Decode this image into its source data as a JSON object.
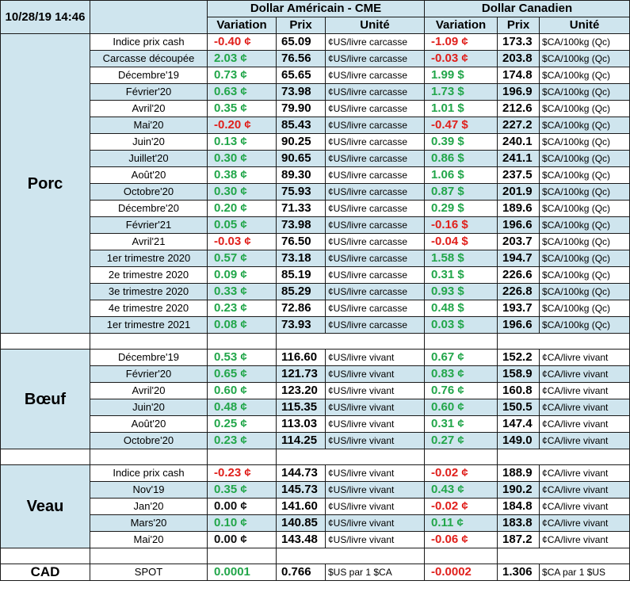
{
  "header": {
    "date": "10/28/19 14:46",
    "us_title": "Dollar Américain - CME",
    "ca_title": "Dollar Canadien",
    "col_variation": "Variation",
    "col_prix": "Prix",
    "col_unite": "Unité"
  },
  "colors": {
    "positive": "#22a64a",
    "negative": "#e0201c",
    "band": "#cfe5ee"
  },
  "sections": [
    {
      "name": "Porc",
      "rows": [
        {
          "label": "Indice prix cash",
          "us_var": "-0.40 ¢",
          "us_sign": "neg",
          "us_price": "65.09",
          "us_unit": "¢US/livre carcasse",
          "ca_var": "-1.09 ¢",
          "ca_sign": "neg",
          "ca_price": "173.3",
          "ca_unit": "$CA/100kg (Qc)"
        },
        {
          "label": "Carcasse découpée",
          "us_var": "2.03 ¢",
          "us_sign": "pos",
          "us_price": "76.56",
          "us_unit": "¢US/livre carcasse",
          "ca_var": "-0.03 ¢",
          "ca_sign": "neg",
          "ca_price": "203.8",
          "ca_unit": "$CA/100kg (Qc)"
        },
        {
          "label": "Décembre'19",
          "us_var": "0.73 ¢",
          "us_sign": "pos",
          "us_price": "65.65",
          "us_unit": "¢US/livre carcasse",
          "ca_var": "1.99 $",
          "ca_sign": "pos",
          "ca_price": "174.8",
          "ca_unit": "$CA/100kg (Qc)"
        },
        {
          "label": "Février'20",
          "us_var": "0.63 ¢",
          "us_sign": "pos",
          "us_price": "73.98",
          "us_unit": "¢US/livre carcasse",
          "ca_var": "1.73 $",
          "ca_sign": "pos",
          "ca_price": "196.9",
          "ca_unit": "$CA/100kg (Qc)"
        },
        {
          "label": "Avril'20",
          "us_var": "0.35 ¢",
          "us_sign": "pos",
          "us_price": "79.90",
          "us_unit": "¢US/livre carcasse",
          "ca_var": "1.01 $",
          "ca_sign": "pos",
          "ca_price": "212.6",
          "ca_unit": "$CA/100kg (Qc)"
        },
        {
          "label": "Mai'20",
          "us_var": "-0.20 ¢",
          "us_sign": "neg",
          "us_price": "85.43",
          "us_unit": "¢US/livre carcasse",
          "ca_var": "-0.47 $",
          "ca_sign": "neg",
          "ca_price": "227.2",
          "ca_unit": "$CA/100kg (Qc)"
        },
        {
          "label": "Juin'20",
          "us_var": "0.13 ¢",
          "us_sign": "pos",
          "us_price": "90.25",
          "us_unit": "¢US/livre carcasse",
          "ca_var": "0.39 $",
          "ca_sign": "pos",
          "ca_price": "240.1",
          "ca_unit": "$CA/100kg (Qc)"
        },
        {
          "label": "Juillet'20",
          "us_var": "0.30 ¢",
          "us_sign": "pos",
          "us_price": "90.65",
          "us_unit": "¢US/livre carcasse",
          "ca_var": "0.86 $",
          "ca_sign": "pos",
          "ca_price": "241.1",
          "ca_unit": "$CA/100kg (Qc)"
        },
        {
          "label": "Août'20",
          "us_var": "0.38 ¢",
          "us_sign": "pos",
          "us_price": "89.30",
          "us_unit": "¢US/livre carcasse",
          "ca_var": "1.06 $",
          "ca_sign": "pos",
          "ca_price": "237.5",
          "ca_unit": "$CA/100kg (Qc)"
        },
        {
          "label": "Octobre'20",
          "us_var": "0.30 ¢",
          "us_sign": "pos",
          "us_price": "75.93",
          "us_unit": "¢US/livre carcasse",
          "ca_var": "0.87 $",
          "ca_sign": "pos",
          "ca_price": "201.9",
          "ca_unit": "$CA/100kg (Qc)"
        },
        {
          "label": "Décembre'20",
          "us_var": "0.20 ¢",
          "us_sign": "pos",
          "us_price": "71.33",
          "us_unit": "¢US/livre carcasse",
          "ca_var": "0.29 $",
          "ca_sign": "pos",
          "ca_price": "189.6",
          "ca_unit": "$CA/100kg (Qc)"
        },
        {
          "label": "Février'21",
          "us_var": "0.05 ¢",
          "us_sign": "pos",
          "us_price": "73.98",
          "us_unit": "¢US/livre carcasse",
          "ca_var": "-0.16 $",
          "ca_sign": "neg",
          "ca_price": "196.6",
          "ca_unit": "$CA/100kg (Qc)"
        },
        {
          "label": "Avril'21",
          "us_var": "-0.03 ¢",
          "us_sign": "neg",
          "us_price": "76.50",
          "us_unit": "¢US/livre carcasse",
          "ca_var": "-0.04 $",
          "ca_sign": "neg",
          "ca_price": "203.7",
          "ca_unit": "$CA/100kg (Qc)"
        },
        {
          "label": "1er trimestre 2020",
          "us_var": "0.57 ¢",
          "us_sign": "pos",
          "us_price": "73.18",
          "us_unit": "¢US/livre carcasse",
          "ca_var": "1.58 $",
          "ca_sign": "pos",
          "ca_price": "194.7",
          "ca_unit": "$CA/100kg (Qc)"
        },
        {
          "label": "2e trimestre 2020",
          "us_var": "0.09 ¢",
          "us_sign": "pos",
          "us_price": "85.19",
          "us_unit": "¢US/livre carcasse",
          "ca_var": "0.31 $",
          "ca_sign": "pos",
          "ca_price": "226.6",
          "ca_unit": "$CA/100kg (Qc)"
        },
        {
          "label": "3e trimestre 2020",
          "us_var": "0.33 ¢",
          "us_sign": "pos",
          "us_price": "85.29",
          "us_unit": "¢US/livre carcasse",
          "ca_var": "0.93 $",
          "ca_sign": "pos",
          "ca_price": "226.8",
          "ca_unit": "$CA/100kg (Qc)"
        },
        {
          "label": "4e trimestre 2020",
          "us_var": "0.23 ¢",
          "us_sign": "pos",
          "us_price": "72.86",
          "us_unit": "¢US/livre carcasse",
          "ca_var": "0.48 $",
          "ca_sign": "pos",
          "ca_price": "193.7",
          "ca_unit": "$CA/100kg (Qc)"
        },
        {
          "label": "1er trimestre 2021",
          "us_var": "0.08 ¢",
          "us_sign": "pos",
          "us_price": "73.93",
          "us_unit": "¢US/livre carcasse",
          "ca_var": "0.03 $",
          "ca_sign": "pos",
          "ca_price": "196.6",
          "ca_unit": "$CA/100kg (Qc)"
        }
      ]
    },
    {
      "name": "Bœuf",
      "rows": [
        {
          "label": "Décembre'19",
          "us_var": "0.53 ¢",
          "us_sign": "pos",
          "us_price": "116.60",
          "us_unit": "¢US/livre vivant",
          "ca_var": "0.67 ¢",
          "ca_sign": "pos",
          "ca_price": "152.2",
          "ca_unit": "¢CA/livre vivant"
        },
        {
          "label": "Février'20",
          "us_var": "0.65 ¢",
          "us_sign": "pos",
          "us_price": "121.73",
          "us_unit": "¢US/livre vivant",
          "ca_var": "0.83 ¢",
          "ca_sign": "pos",
          "ca_price": "158.9",
          "ca_unit": "¢CA/livre vivant"
        },
        {
          "label": "Avril'20",
          "us_var": "0.60 ¢",
          "us_sign": "pos",
          "us_price": "123.20",
          "us_unit": "¢US/livre vivant",
          "ca_var": "0.76 ¢",
          "ca_sign": "pos",
          "ca_price": "160.8",
          "ca_unit": "¢CA/livre vivant"
        },
        {
          "label": "Juin'20",
          "us_var": "0.48 ¢",
          "us_sign": "pos",
          "us_price": "115.35",
          "us_unit": "¢US/livre vivant",
          "ca_var": "0.60 ¢",
          "ca_sign": "pos",
          "ca_price": "150.5",
          "ca_unit": "¢CA/livre vivant"
        },
        {
          "label": "Août'20",
          "us_var": "0.25 ¢",
          "us_sign": "pos",
          "us_price": "113.03",
          "us_unit": "¢US/livre vivant",
          "ca_var": "0.31 ¢",
          "ca_sign": "pos",
          "ca_price": "147.4",
          "ca_unit": "¢CA/livre vivant"
        },
        {
          "label": "Octobre'20",
          "us_var": "0.23 ¢",
          "us_sign": "pos",
          "us_price": "114.25",
          "us_unit": "¢US/livre vivant",
          "ca_var": "0.27 ¢",
          "ca_sign": "pos",
          "ca_price": "149.0",
          "ca_unit": "¢CA/livre vivant"
        }
      ]
    },
    {
      "name": "Veau",
      "rows": [
        {
          "label": "Indice prix cash",
          "us_var": "-0.23 ¢",
          "us_sign": "neg",
          "us_price": "144.73",
          "us_unit": "¢US/livre vivant",
          "ca_var": "-0.02 ¢",
          "ca_sign": "neg",
          "ca_price": "188.9",
          "ca_unit": "¢CA/livre vivant"
        },
        {
          "label": "Nov'19",
          "us_var": "0.35 ¢",
          "us_sign": "pos",
          "us_price": "145.73",
          "us_unit": "¢US/livre vivant",
          "ca_var": "0.43 ¢",
          "ca_sign": "pos",
          "ca_price": "190.2",
          "ca_unit": "¢CA/livre vivant"
        },
        {
          "label": "Jan'20",
          "us_var": "0.00 ¢",
          "us_sign": "zero",
          "us_price": "141.60",
          "us_unit": "¢US/livre vivant",
          "ca_var": "-0.02 ¢",
          "ca_sign": "neg",
          "ca_price": "184.8",
          "ca_unit": "¢CA/livre vivant"
        },
        {
          "label": "Mars'20",
          "us_var": "0.10 ¢",
          "us_sign": "pos",
          "us_price": "140.85",
          "us_unit": "¢US/livre vivant",
          "ca_var": "0.11 ¢",
          "ca_sign": "pos",
          "ca_price": "183.8",
          "ca_unit": "¢CA/livre vivant"
        },
        {
          "label": "Mai'20",
          "us_var": "0.00 ¢",
          "us_sign": "zero",
          "us_price": "143.48",
          "us_unit": "¢US/livre vivant",
          "ca_var": "-0.06 ¢",
          "ca_sign": "neg",
          "ca_price": "187.2",
          "ca_unit": "¢CA/livre vivant"
        }
      ]
    }
  ],
  "cad": {
    "name": "CAD",
    "label": "SPOT",
    "us_var": "0.0001",
    "us_sign": "pos",
    "us_price": "0.766",
    "us_unit": "$US par 1 $CA",
    "ca_var": "-0.0002",
    "ca_sign": "neg",
    "ca_price": "1.306",
    "ca_unit": "$CA par 1 $US"
  }
}
